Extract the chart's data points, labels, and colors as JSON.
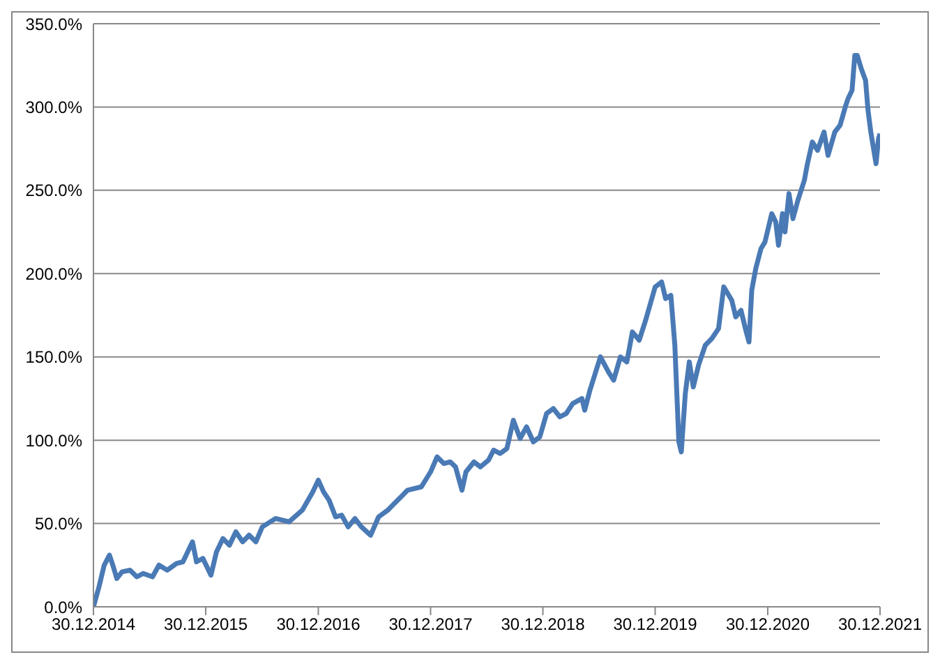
{
  "chart_data": {
    "type": "line",
    "x": [
      "2014-12-30",
      "2015-01-17",
      "2015-02-03",
      "2015-02-20",
      "2015-03-03",
      "2015-03-16",
      "2015-04-02",
      "2015-04-28",
      "2015-05-20",
      "2015-06-10",
      "2015-07-10",
      "2015-07-31",
      "2015-08-27",
      "2015-09-26",
      "2015-10-17",
      "2015-11-17",
      "2015-11-30",
      "2015-12-21",
      "2016-01-16",
      "2016-02-03",
      "2016-02-24",
      "2016-03-16",
      "2016-04-06",
      "2016-04-28",
      "2016-05-19",
      "2016-06-10",
      "2016-07-01",
      "2016-08-13",
      "2016-09-26",
      "2016-11-08",
      "2016-12-12",
      "2016-12-30",
      "2017-01-16",
      "2017-02-03",
      "2017-02-24",
      "2017-03-16",
      "2017-04-06",
      "2017-04-28",
      "2017-05-19",
      "2017-06-18",
      "2017-07-14",
      "2017-08-13",
      "2017-09-03",
      "2017-09-25",
      "2017-10-16",
      "2017-11-30",
      "2017-12-30",
      "2018-01-20",
      "2018-02-11",
      "2018-03-04",
      "2018-03-21",
      "2018-04-11",
      "2018-04-24",
      "2018-05-20",
      "2018-06-10",
      "2018-07-06",
      "2018-07-23",
      "2018-08-13",
      "2018-09-04",
      "2018-09-25",
      "2018-10-17",
      "2018-11-07",
      "2018-11-29",
      "2018-12-20",
      "2019-01-11",
      "2019-02-02",
      "2019-02-23",
      "2019-03-16",
      "2019-04-06",
      "2019-05-06",
      "2019-05-15",
      "2019-06-01",
      "2019-07-05",
      "2019-07-31",
      "2019-08-17",
      "2019-09-08",
      "2019-09-29",
      "2019-10-17",
      "2019-11-08",
      "2019-11-29",
      "2019-12-30",
      "2020-01-20",
      "2020-02-02",
      "2020-02-19",
      "2020-03-03",
      "2020-03-16",
      "2020-03-24",
      "2020-04-06",
      "2020-04-19",
      "2020-05-02",
      "2020-05-19",
      "2020-06-10",
      "2020-07-01",
      "2020-07-23",
      "2020-08-09",
      "2020-09-04",
      "2020-09-17",
      "2020-10-04",
      "2020-10-21",
      "2020-10-30",
      "2020-11-08",
      "2020-11-21",
      "2020-12-08",
      "2020-12-21",
      "2021-01-12",
      "2021-01-25",
      "2021-02-03",
      "2021-02-16",
      "2021-02-24",
      "2021-03-09",
      "2021-03-22",
      "2021-04-07",
      "2021-04-28",
      "2021-05-07",
      "2021-05-24",
      "2021-06-10",
      "2021-07-01",
      "2021-07-14",
      "2021-08-05",
      "2021-08-22",
      "2021-09-08",
      "2021-09-17",
      "2021-09-30",
      "2021-10-09",
      "2021-10-17",
      "2021-10-30",
      "2021-11-13",
      "2021-11-21",
      "2021-11-30",
      "2021-12-17",
      "2021-12-25",
      "2021-12-30"
    ],
    "series": [
      {
        "color": "#4a7ab5",
        "values": [
          0,
          12,
          25,
          31,
          25,
          17,
          21,
          22,
          18,
          20,
          18,
          25,
          22,
          26,
          27,
          39,
          27,
          29,
          19,
          33,
          41,
          37,
          45,
          39,
          43,
          39,
          48,
          53,
          51,
          58,
          69,
          76,
          69,
          64,
          54,
          55,
          48,
          53,
          48,
          43,
          54,
          58,
          62,
          66,
          70,
          72,
          81,
          90,
          86,
          87,
          84,
          70,
          81,
          87,
          84,
          88,
          94,
          92,
          95,
          112,
          101,
          108,
          99,
          102,
          116,
          119,
          114,
          116,
          122,
          125,
          118,
          130,
          150,
          141,
          136,
          150,
          147,
          165,
          160,
          172,
          192,
          195,
          185,
          187,
          157,
          99,
          93,
          128,
          147,
          132,
          145,
          157,
          161,
          167,
          192,
          184,
          174,
          178,
          165,
          159,
          190,
          203,
          215,
          219,
          236,
          231,
          217,
          236,
          225,
          248,
          233,
          244,
          256,
          265,
          279,
          274,
          285,
          271,
          285,
          289,
          300,
          305,
          310,
          331,
          331,
          323,
          316,
          298,
          285,
          266,
          281,
          284
        ]
      }
    ],
    "xlim": [
      "2014-12-30",
      "2021-12-30"
    ],
    "xticks": [
      {
        "value": "2014-12-30",
        "label": "30.12.2014"
      },
      {
        "value": "2015-12-30",
        "label": "30.12.2015"
      },
      {
        "value": "2016-12-30",
        "label": "30.12.2016"
      },
      {
        "value": "2017-12-30",
        "label": "30.12.2017"
      },
      {
        "value": "2018-12-30",
        "label": "30.12.2018"
      },
      {
        "value": "2019-12-30",
        "label": "30.12.2019"
      },
      {
        "value": "2020-12-30",
        "label": "30.12.2020"
      },
      {
        "value": "2021-12-30",
        "label": "30.12.2021"
      }
    ],
    "ylim": [
      0,
      350
    ],
    "yticks": [
      {
        "value": 0,
        "label": "0.0%"
      },
      {
        "value": 50,
        "label": "50.0%"
      },
      {
        "value": 100,
        "label": "100.0%"
      },
      {
        "value": 150,
        "label": "150.0%"
      },
      {
        "value": 200,
        "label": "200.0%"
      },
      {
        "value": 250,
        "label": "250.0%"
      },
      {
        "value": 300,
        "label": "300.0%"
      },
      {
        "value": 350,
        "label": "350.0%"
      }
    ],
    "grid": "y",
    "marker": "none",
    "line_style": "solid",
    "legend": false
  }
}
